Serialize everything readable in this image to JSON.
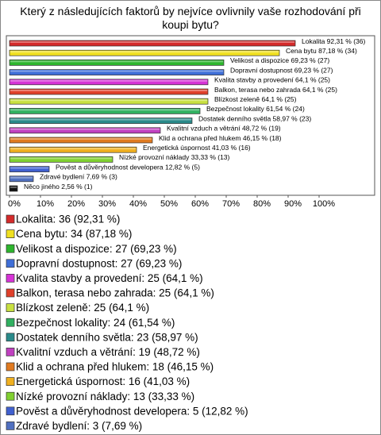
{
  "chart_data": {
    "type": "barh",
    "title": "Který z následujících faktorů by nejvíce ovlivnily vaše rozhodování při koupi bytu?",
    "categories": [
      "Lokalita",
      "Cena bytu",
      "Velikost a dispozice",
      "Dopravní dostupnost",
      "Kvalita stavby a provedení",
      "Balkon, terasa nebo zahrada",
      "Blízkost zeleně",
      "Bezpečnost lokality",
      "Dostatek denního světla",
      "Kvalitní vzduch a větrání",
      "Klid a ochrana před hlukem",
      "Energetická úspornost",
      "Nízké provozní náklady",
      "Pověst a důvěryhodnost developera",
      "Zdravé bydlení",
      "Něco jiného"
    ],
    "values": [
      92.31,
      87.18,
      69.23,
      69.23,
      64.1,
      64.1,
      64.1,
      61.54,
      58.97,
      48.72,
      46.15,
      41.03,
      33.33,
      12.82,
      7.69,
      2.56
    ],
    "value_labels": [
      "Lokalita 92,31 % (36)",
      "Cena bytu 87,18 % (34)",
      "Velikost a dispozice 69,23 % (27)",
      "Dopravní dostupnost 69,23 % (27)",
      "Kvalita stavby a provedení 64,1 % (25)",
      "Balkon, terasa nebo zahrada 64,1 % (25)",
      "Blízkost zeleně 64,1 % (25)",
      "Bezpečnost lokality 61,54 % (24)",
      "Dostatek denního světla 58,97 % (23)",
      "Kvalitní vzduch a větrání 48,72 % (19)",
      "Klid a ochrana před hlukem 46,15 % (18)",
      "Energetická úspornost 41,03 % (16)",
      "Nízké provozní náklady 33,33 % (13)",
      "Pověst a důvěryhodnost developera 12,82 % (5)",
      "Zdravé bydlení 7,69 % (3)",
      "Něco jiného 2,56 % (1)"
    ],
    "legend_labels": [
      "Lokalita: 36 (92,31 %)",
      "Cena bytu: 34 (87,18 %)",
      "Velikost a dispozice: 27 (69,23 %)",
      "Dopravní dostupnost: 27 (69,23 %)",
      "Kvalita stavby a provedení: 25 (64,1 %)",
      "Balkon, terasa nebo zahrada: 25 (64,1 %)",
      "Blízkost zeleně: 25 (64,1 %)",
      "Bezpečnost lokality: 24 (61,54 %)",
      "Dostatek denního světla: 23 (58,97 %)",
      "Kvalitní vzduch a větrání: 19 (48,72 %)",
      "Klid a ochrana před hlukem: 18 (46,15 %)",
      "Energetická úspornost: 16 (41,03 %)",
      "Nízké provozní náklady: 13 (33,33 %)",
      "Pověst a důvěryhodnost developera: 5 (12,82 %)",
      "Zdravé bydlení: 3 (7,69 %)",
      "Něco jiného: 1 (2,56 %)"
    ],
    "colors": [
      "#d42a2a",
      "#f0e020",
      "#2db52d",
      "#3f6fd8",
      "#d633d6",
      "#e0402a",
      "#c8e040",
      "#30b060",
      "#2a8a8a",
      "#c040c0",
      "#e07a20",
      "#f0b020",
      "#80d030",
      "#4060d0",
      "#5070c0",
      "#111111"
    ],
    "xlim": [
      0,
      100
    ],
    "xticks": [
      {
        "value": 0,
        "label": "0%"
      },
      {
        "value": 10,
        "label": "10%"
      },
      {
        "value": 20,
        "label": "20%"
      },
      {
        "value": 30,
        "label": "30%"
      },
      {
        "value": 40,
        "label": "40%"
      },
      {
        "value": 50,
        "label": "50%"
      },
      {
        "value": 60,
        "label": "60%"
      },
      {
        "value": 70,
        "label": "70%"
      },
      {
        "value": 80,
        "label": "80%"
      },
      {
        "value": 90,
        "label": "90%"
      },
      {
        "value": 100,
        "label": "100%"
      }
    ]
  }
}
